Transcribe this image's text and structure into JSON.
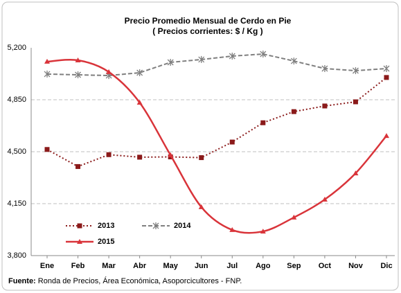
{
  "chart_data": {
    "type": "line",
    "title": "Precio Promedio Mensual de Cerdo en Pie",
    "subtitle": "( Precios corrientes: $ / Kg )",
    "categories": [
      "Ene",
      "Feb",
      "Mar",
      "Abr",
      "May",
      "Jun",
      "Jul",
      "Ago",
      "Sep",
      "Oct",
      "Nov",
      "Dic"
    ],
    "series": [
      {
        "name": "2013",
        "color": "#8b1a1a",
        "style": "dotted",
        "marker": "square",
        "smooth": false,
        "values": [
          4515,
          4400,
          4480,
          4463,
          4465,
          4460,
          4565,
          4695,
          4770,
          4808,
          4836,
          5000
        ]
      },
      {
        "name": "2014",
        "color": "#7f7f7f",
        "style": "dashed",
        "marker": "asterisk",
        "smooth": false,
        "values": [
          5023,
          5018,
          5013,
          5032,
          5102,
          5121,
          5144,
          5158,
          5111,
          5060,
          5046,
          5060
        ]
      },
      {
        "name": "2015",
        "color": "#d9343a",
        "style": "solid",
        "marker": "triangle",
        "smooth": true,
        "values": [
          5107,
          5116,
          5037,
          4831,
          4477,
          4127,
          3973,
          3963,
          4057,
          4178,
          4355,
          4607
        ]
      }
    ],
    "ylim": [
      3800,
      5200
    ],
    "yticks": [
      {
        "value": 3800,
        "label": "3,800"
      },
      {
        "value": 4150,
        "label": "4,150"
      },
      {
        "value": 4500,
        "label": "4,500"
      },
      {
        "value": 4850,
        "label": "4,850"
      },
      {
        "value": 5200,
        "label": "5,200"
      }
    ],
    "grid": true,
    "legend": "bottom-left",
    "source": {
      "label": "Fuente:",
      "text": "Ronda de Precios, Área Económica, Asoporcicultores - FNP."
    }
  }
}
